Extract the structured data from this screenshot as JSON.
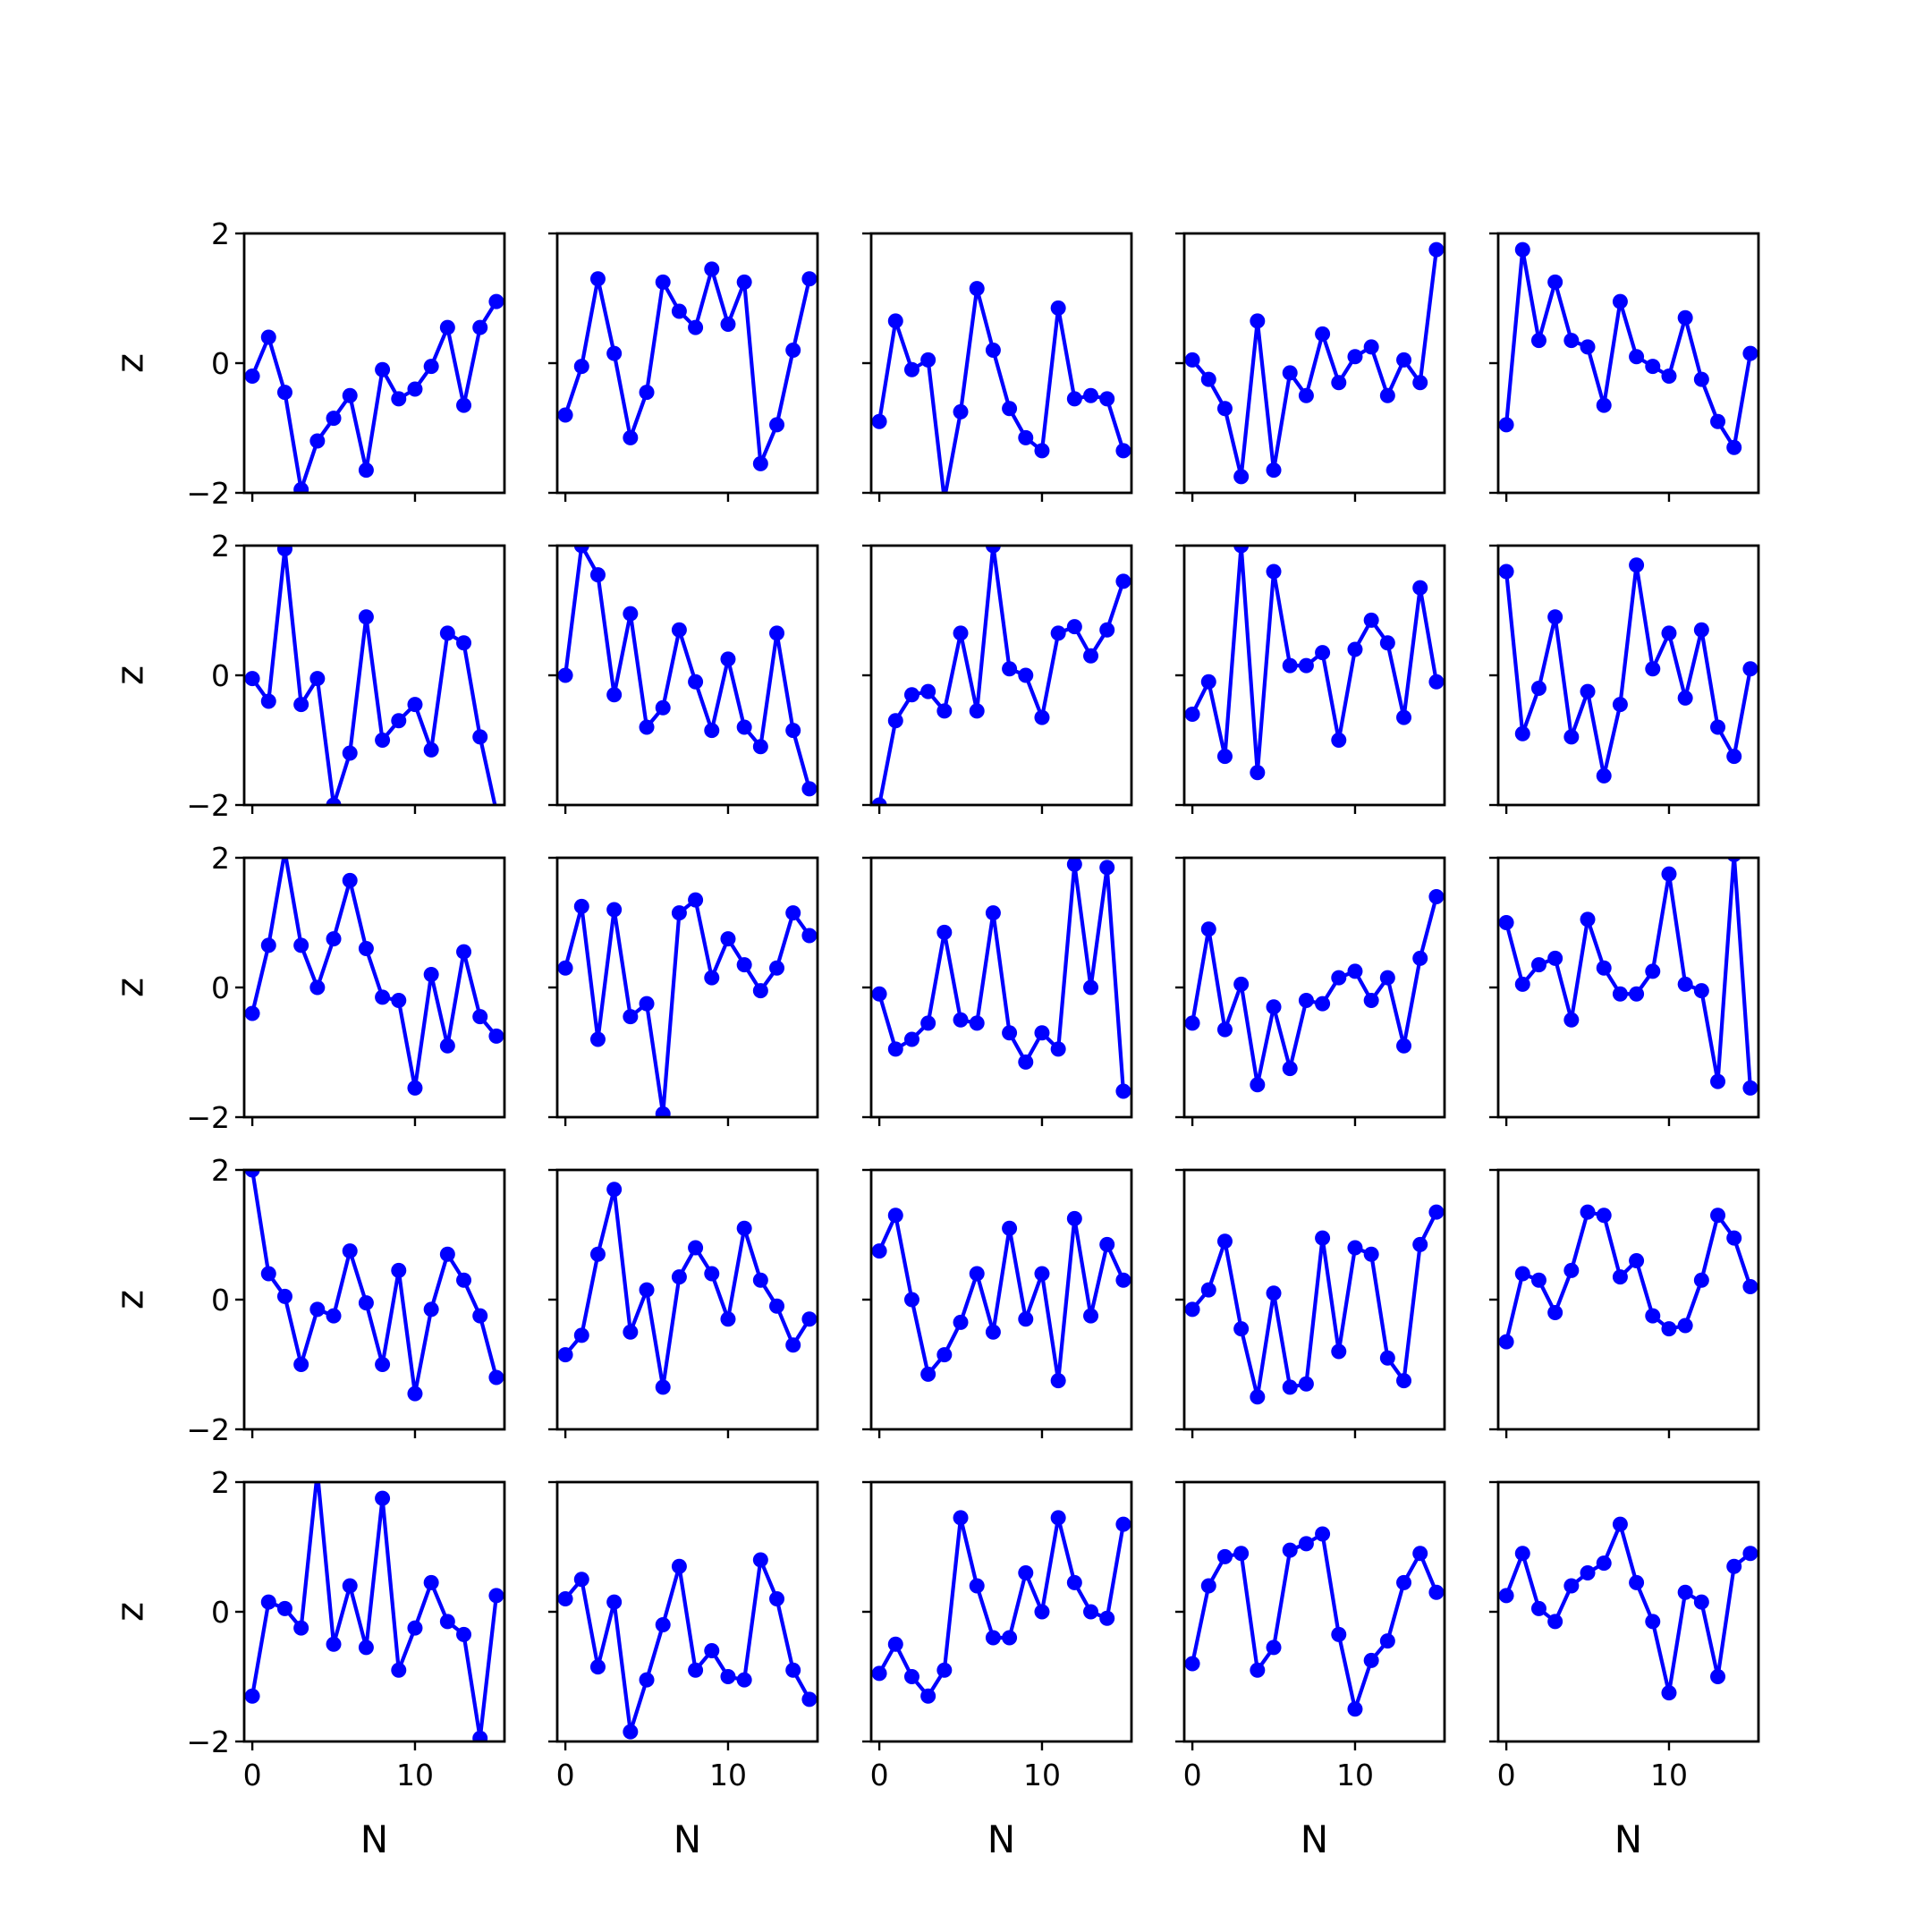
{
  "chart_data": {
    "type": "line",
    "layout": {
      "rows": 5,
      "cols": 5,
      "sharex": true,
      "sharey": true
    },
    "x": [
      0,
      1,
      2,
      3,
      4,
      5,
      6,
      7,
      8,
      9,
      10,
      11,
      12,
      13,
      14,
      15
    ],
    "xlabel": "N",
    "ylabel": "z",
    "xlim": [
      -0.5,
      15.5
    ],
    "ylim": [
      -2,
      2
    ],
    "xticks": [
      0,
      10
    ],
    "xtick_labels": [
      "0",
      "10"
    ],
    "yticks": [
      -2,
      0,
      2
    ],
    "ytick_labels": [
      "−2",
      "0",
      "2"
    ],
    "grid": false,
    "line_color": "#0000ff",
    "marker": "circle",
    "panels": [
      {
        "row": 0,
        "col": 0,
        "values": [
          -0.2,
          0.4,
          -0.45,
          -1.95,
          -1.2,
          -0.85,
          -0.5,
          -1.65,
          -0.1,
          -0.55,
          -0.4,
          -0.05,
          0.55,
          -0.65,
          0.55,
          0.95
        ]
      },
      {
        "row": 0,
        "col": 1,
        "values": [
          -0.8,
          -0.05,
          1.3,
          0.15,
          -1.15,
          -0.45,
          1.25,
          0.8,
          0.55,
          1.45,
          0.6,
          1.25,
          -1.55,
          -0.95,
          0.2,
          1.3
        ]
      },
      {
        "row": 0,
        "col": 2,
        "values": [
          -0.9,
          0.65,
          -0.1,
          0.05,
          -2.1,
          -0.75,
          1.15,
          0.2,
          -0.7,
          -1.15,
          -1.35,
          0.85,
          -0.55,
          -0.5,
          -0.55,
          -1.35
        ]
      },
      {
        "row": 0,
        "col": 3,
        "values": [
          0.05,
          -0.25,
          -0.7,
          -1.75,
          0.65,
          -1.65,
          -0.15,
          -0.5,
          0.45,
          -0.3,
          0.1,
          0.25,
          -0.5,
          0.05,
          -0.3,
          1.75
        ]
      },
      {
        "row": 0,
        "col": 4,
        "values": [
          -0.95,
          1.75,
          0.35,
          1.25,
          0.35,
          0.25,
          -0.65,
          0.95,
          0.1,
          -0.05,
          -0.2,
          0.7,
          -0.25,
          -0.9,
          -1.3,
          0.15
        ]
      },
      {
        "row": 1,
        "col": 0,
        "values": [
          -0.05,
          -0.4,
          1.95,
          -0.45,
          -0.05,
          -2.0,
          -1.2,
          0.9,
          -1.0,
          -0.7,
          -0.45,
          -1.15,
          0.65,
          0.5,
          -0.95,
          -2.1
        ]
      },
      {
        "row": 1,
        "col": 1,
        "values": [
          0.0,
          2.0,
          1.55,
          -0.3,
          0.95,
          -0.8,
          -0.5,
          0.7,
          -0.1,
          -0.85,
          0.25,
          -0.8,
          -1.1,
          0.65,
          -0.85,
          -1.75
        ]
      },
      {
        "row": 1,
        "col": 2,
        "values": [
          -2.0,
          -0.7,
          -0.3,
          -0.25,
          -0.55,
          0.65,
          -0.55,
          2.0,
          0.1,
          0.0,
          -0.65,
          0.65,
          0.75,
          0.3,
          0.7,
          1.45
        ]
      },
      {
        "row": 1,
        "col": 3,
        "values": [
          -0.6,
          -0.1,
          -1.25,
          2.0,
          -1.5,
          1.6,
          0.15,
          0.15,
          0.35,
          -1.0,
          0.4,
          0.85,
          0.5,
          -0.65,
          1.35,
          -0.1
        ]
      },
      {
        "row": 1,
        "col": 4,
        "values": [
          1.6,
          -0.9,
          -0.2,
          0.9,
          -0.95,
          -0.25,
          -1.55,
          -0.45,
          1.7,
          0.1,
          0.65,
          -0.35,
          0.7,
          -0.8,
          -1.25,
          0.1
        ]
      },
      {
        "row": 2,
        "col": 0,
        "values": [
          -0.4,
          0.65,
          2.1,
          0.65,
          0.0,
          0.75,
          1.65,
          0.6,
          -0.15,
          -0.2,
          -1.55,
          0.2,
          -0.9,
          0.55,
          -0.45,
          -0.75
        ]
      },
      {
        "row": 2,
        "col": 1,
        "values": [
          0.3,
          1.25,
          -0.8,
          1.2,
          -0.45,
          -0.25,
          -1.95,
          1.15,
          1.35,
          0.15,
          0.75,
          0.35,
          -0.05,
          0.3,
          1.15,
          0.8
        ]
      },
      {
        "row": 2,
        "col": 2,
        "values": [
          -0.1,
          -0.95,
          -0.8,
          -0.55,
          0.85,
          -0.5,
          -0.55,
          1.15,
          -0.7,
          -1.15,
          -0.7,
          -0.95,
          1.9,
          0.0,
          1.85,
          -1.6
        ]
      },
      {
        "row": 2,
        "col": 3,
        "values": [
          -0.55,
          0.9,
          -0.65,
          0.05,
          -1.5,
          -0.3,
          -1.25,
          -0.2,
          -0.25,
          0.15,
          0.25,
          -0.2,
          0.15,
          -0.9,
          0.45,
          1.4
        ]
      },
      {
        "row": 2,
        "col": 4,
        "values": [
          1.0,
          0.05,
          0.35,
          0.45,
          -0.5,
          1.05,
          0.3,
          -0.1,
          -0.1,
          0.25,
          1.75,
          0.05,
          -0.05,
          -1.45,
          2.05,
          -1.55
        ]
      },
      {
        "row": 3,
        "col": 0,
        "values": [
          2.0,
          0.4,
          0.05,
          -1.0,
          -0.15,
          -0.25,
          0.75,
          -0.05,
          -1.0,
          0.45,
          -1.45,
          -0.15,
          0.7,
          0.3,
          -0.25,
          -1.2
        ]
      },
      {
        "row": 3,
        "col": 1,
        "values": [
          -0.85,
          -0.55,
          0.7,
          1.7,
          -0.5,
          0.15,
          -1.35,
          0.35,
          0.8,
          0.4,
          -0.3,
          1.1,
          0.3,
          -0.1,
          -0.7,
          -0.3
        ]
      },
      {
        "row": 3,
        "col": 2,
        "values": [
          0.75,
          1.3,
          0.0,
          -1.15,
          -0.85,
          -0.35,
          0.4,
          -0.5,
          1.1,
          -0.3,
          0.4,
          -1.25,
          1.25,
          -0.25,
          0.85,
          0.3
        ]
      },
      {
        "row": 3,
        "col": 3,
        "values": [
          -0.15,
          0.15,
          0.9,
          -0.45,
          -1.5,
          0.1,
          -1.35,
          -1.3,
          0.95,
          -0.8,
          0.8,
          0.7,
          -0.9,
          -1.25,
          0.85,
          1.35
        ]
      },
      {
        "row": 3,
        "col": 4,
        "values": [
          -0.65,
          0.4,
          0.3,
          -0.2,
          0.45,
          1.35,
          1.3,
          0.35,
          0.6,
          -0.25,
          -0.45,
          -0.4,
          0.3,
          1.3,
          0.95,
          0.2
        ]
      },
      {
        "row": 4,
        "col": 0,
        "values": [
          -1.3,
          0.15,
          0.05,
          -0.25,
          2.15,
          -0.5,
          0.4,
          -0.55,
          1.75,
          -0.9,
          -0.25,
          0.45,
          -0.15,
          -0.35,
          -1.95,
          0.25
        ]
      },
      {
        "row": 4,
        "col": 1,
        "values": [
          0.2,
          0.5,
          -0.85,
          0.15,
          -1.85,
          -1.05,
          -0.2,
          0.7,
          -0.9,
          -0.6,
          -1.0,
          -1.05,
          0.8,
          0.2,
          -0.9,
          -1.35
        ]
      },
      {
        "row": 4,
        "col": 2,
        "values": [
          -0.95,
          -0.5,
          -1.0,
          -1.3,
          -0.9,
          1.45,
          0.4,
          -0.4,
          -0.4,
          0.6,
          0.0,
          1.45,
          0.45,
          0.0,
          -0.1,
          1.35
        ]
      },
      {
        "row": 4,
        "col": 3,
        "values": [
          -0.8,
          0.4,
          0.85,
          0.9,
          -0.9,
          -0.55,
          0.95,
          1.05,
          1.2,
          -0.35,
          -1.5,
          -0.75,
          -0.45,
          0.45,
          0.9,
          0.3
        ]
      },
      {
        "row": 4,
        "col": 4,
        "values": [
          0.25,
          0.9,
          0.05,
          -0.15,
          0.4,
          0.6,
          0.75,
          1.35,
          0.45,
          -0.15,
          -1.25,
          0.3,
          0.15,
          -1.0,
          0.7,
          0.9
        ]
      }
    ]
  }
}
